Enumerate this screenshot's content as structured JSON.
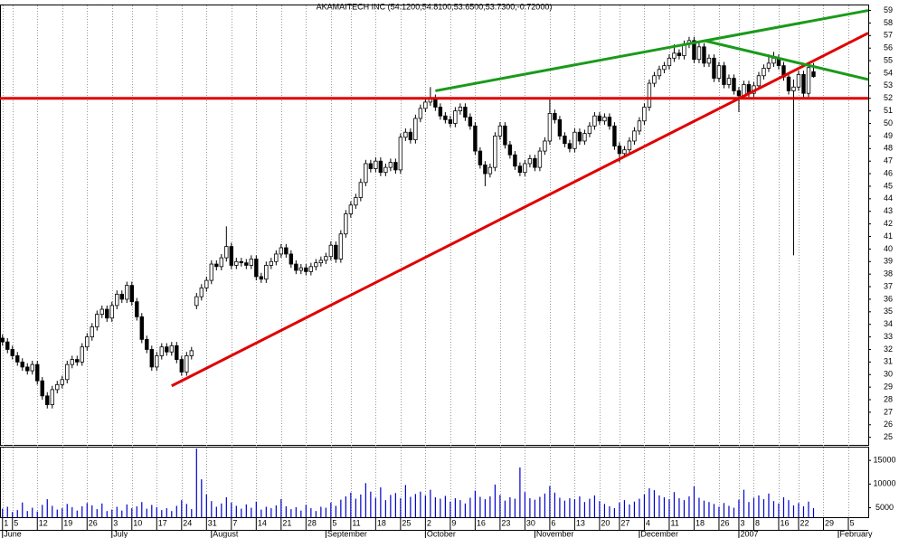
{
  "chart_data": [
    {
      "type": "candlestick",
      "title": "AKAMAITECH INC (54.1200,54.8100,53.6500,53.7300,-0.72000)",
      "xlim": [
        -0.5,
        174
      ],
      "xticks": [
        {
          "value": 0,
          "label": "1"
        },
        {
          "value": 2,
          "label": "5"
        },
        {
          "value": 7,
          "label": "12"
        },
        {
          "value": 12,
          "label": "19"
        },
        {
          "value": 17,
          "label": "26"
        },
        {
          "value": 22,
          "label": "3"
        },
        {
          "value": 26,
          "label": "10"
        },
        {
          "value": 31,
          "label": "17"
        },
        {
          "value": 36,
          "label": "24"
        },
        {
          "value": 41,
          "label": "31"
        },
        {
          "value": 46,
          "label": "7"
        },
        {
          "value": 51,
          "label": "14"
        },
        {
          "value": 56,
          "label": "21"
        },
        {
          "value": 61,
          "label": "28"
        },
        {
          "value": 66,
          "label": "5"
        },
        {
          "value": 70,
          "label": "11"
        },
        {
          "value": 75,
          "label": "18"
        },
        {
          "value": 80,
          "label": "25"
        },
        {
          "value": 85,
          "label": "2"
        },
        {
          "value": 90,
          "label": "9"
        },
        {
          "value": 95,
          "label": "16"
        },
        {
          "value": 100,
          "label": "23"
        },
        {
          "value": 105,
          "label": "30"
        },
        {
          "value": 110,
          "label": "6"
        },
        {
          "value": 115,
          "label": "13"
        },
        {
          "value": 120,
          "label": "20"
        },
        {
          "value": 124,
          "label": "27"
        },
        {
          "value": 129,
          "label": "4"
        },
        {
          "value": 134,
          "label": "11"
        },
        {
          "value": 139,
          "label": "18"
        },
        {
          "value": 144,
          "label": "26"
        },
        {
          "value": 148,
          "label": "3"
        },
        {
          "value": 151,
          "label": "8"
        },
        {
          "value": 156,
          "label": "16"
        },
        {
          "value": 160,
          "label": "22"
        },
        {
          "value": 165,
          "label": "29"
        },
        {
          "value": 170,
          "label": "5"
        }
      ],
      "month_ticks": [
        {
          "value": 0,
          "label": "June"
        },
        {
          "value": 22,
          "label": "July"
        },
        {
          "value": 42,
          "label": "August"
        },
        {
          "value": 65,
          "label": "September"
        },
        {
          "value": 85,
          "label": "October"
        },
        {
          "value": 107,
          "label": "November"
        },
        {
          "value": 128,
          "label": "December"
        },
        {
          "value": 148,
          "label": "2007"
        },
        {
          "value": 168,
          "label": "February"
        }
      ],
      "ylim": [
        24.4,
        59.4
      ],
      "yticks": [
        25,
        26,
        27,
        28,
        29,
        30,
        31,
        32,
        33,
        34,
        35,
        36,
        37,
        38,
        39,
        40,
        41,
        42,
        43,
        44,
        45,
        46,
        47,
        48,
        49,
        50,
        51,
        52,
        53,
        54,
        55,
        56,
        57,
        58,
        59
      ],
      "grid": true,
      "series": [
        {
          "up_color": "#ffffff",
          "down_color": "#000000",
          "open": [
            32.9,
            32.6,
            32.0,
            31.5,
            31.0,
            30.6,
            30.3,
            30.8,
            29.5,
            28.3,
            27.6,
            28.8,
            29.2,
            29.6,
            30.8,
            31.2,
            31.0,
            32.2,
            33.0,
            33.8,
            34.8,
            35.2,
            34.5,
            35.5,
            36.4,
            36.0,
            37.1,
            35.8,
            34.6,
            32.8,
            32.0,
            30.6,
            31.5,
            32.2,
            31.8,
            32.3,
            31.2,
            30.2,
            31.5,
            35.5,
            36.2,
            36.9,
            37.5,
            38.8,
            38.6,
            39.3,
            40.2,
            38.7,
            39.0,
            38.9,
            38.7,
            39.2,
            37.8,
            37.6,
            38.7,
            39.0,
            39.6,
            40.1,
            39.6,
            38.8,
            38.3,
            38.5,
            38.2,
            38.6,
            38.9,
            39.1,
            39.4,
            40.3,
            39.2,
            41.2,
            42.8,
            43.5,
            44.1,
            45.3,
            46.8,
            46.4,
            47.0,
            46.1,
            46.5,
            46.9,
            46.3,
            48.9,
            49.3,
            48.7,
            50.4,
            51.2,
            51.7,
            52.0,
            51.3,
            50.6,
            50.3,
            50.0,
            51.0,
            51.3,
            50.5,
            49.8,
            47.8,
            46.7,
            46.0,
            46.5,
            49.0,
            49.8,
            48.3,
            47.5,
            46.6,
            46.1,
            46.8,
            47.2,
            46.5,
            47.8,
            48.6,
            50.8,
            50.3,
            49.0,
            48.4,
            48.0,
            49.3,
            48.6,
            49.2,
            49.8,
            50.6,
            50.2,
            50.5,
            49.8,
            48.2,
            47.6,
            47.9,
            48.6,
            49.4,
            50.2,
            51.3,
            53.2,
            53.8,
            54.3,
            54.6,
            55.2,
            55.6,
            55.4,
            56.3,
            56.6,
            55.1,
            56.1,
            54.8,
            55.2,
            53.6,
            54.6,
            53.1,
            53.6,
            52.6,
            52.2,
            53.1,
            52.4,
            53.0,
            53.8,
            54.4,
            54.8,
            55.2,
            54.6,
            53.7,
            52.6,
            52.9,
            53.9,
            52.4,
            54.12
          ],
          "high": [
            33.2,
            32.9,
            32.3,
            31.8,
            31.3,
            30.9,
            31.1,
            31.1,
            29.8,
            28.6,
            29.1,
            29.5,
            29.9,
            31.1,
            31.5,
            31.5,
            32.5,
            33.3,
            34.1,
            35.1,
            35.5,
            35.5,
            35.8,
            36.7,
            36.7,
            37.4,
            37.4,
            36.1,
            34.9,
            33.1,
            32.3,
            31.8,
            32.5,
            32.5,
            32.6,
            32.6,
            31.5,
            31.8,
            32.2,
            36.5,
            37.2,
            37.8,
            39.1,
            39.1,
            39.6,
            41.8,
            40.5,
            39.3,
            39.3,
            39.2,
            39.5,
            39.5,
            38.1,
            39.0,
            39.3,
            39.9,
            40.4,
            40.4,
            39.9,
            39.1,
            38.8,
            38.8,
            38.9,
            39.2,
            39.4,
            39.7,
            40.6,
            40.6,
            41.5,
            43.1,
            43.8,
            44.4,
            45.6,
            47.1,
            47.1,
            47.3,
            47.3,
            46.8,
            47.2,
            47.2,
            49.2,
            49.6,
            49.6,
            50.7,
            51.5,
            52.0,
            52.9,
            52.3,
            51.6,
            50.9,
            50.6,
            51.3,
            51.6,
            51.6,
            50.8,
            50.1,
            48.1,
            47.0,
            46.8,
            49.3,
            50.1,
            50.1,
            48.6,
            47.8,
            46.9,
            47.1,
            47.5,
            47.5,
            48.1,
            48.9,
            51.9,
            51.1,
            50.6,
            49.3,
            48.7,
            49.6,
            49.6,
            49.5,
            50.1,
            50.9,
            50.9,
            50.8,
            50.8,
            50.1,
            48.5,
            48.2,
            48.9,
            49.7,
            50.5,
            51.6,
            53.5,
            54.1,
            54.6,
            54.9,
            55.5,
            56.3,
            55.9,
            56.6,
            56.9,
            56.9,
            56.4,
            56.4,
            55.5,
            55.5,
            54.9,
            54.9,
            53.9,
            53.9,
            52.9,
            53.4,
            53.4,
            53.3,
            54.1,
            54.7,
            55.5,
            55.7,
            55.5,
            54.9,
            54.0,
            53.5,
            54.2,
            54.2,
            54.8,
            54.81
          ],
          "low": [
            32.3,
            31.7,
            31.2,
            30.7,
            30.3,
            30.0,
            30.0,
            29.2,
            28.0,
            27.3,
            27.3,
            28.5,
            28.9,
            29.3,
            30.5,
            30.7,
            30.7,
            31.9,
            32.7,
            33.5,
            34.5,
            34.2,
            34.2,
            35.2,
            35.7,
            35.7,
            35.5,
            34.3,
            32.5,
            31.7,
            30.3,
            30.3,
            31.2,
            31.5,
            31.5,
            30.9,
            29.9,
            29.9,
            31.2,
            35.2,
            35.9,
            36.6,
            37.2,
            38.3,
            38.3,
            39.0,
            38.4,
            38.4,
            38.6,
            38.4,
            38.4,
            37.5,
            37.3,
            37.3,
            38.4,
            38.7,
            39.3,
            39.3,
            38.5,
            38.0,
            38.0,
            37.9,
            37.9,
            38.3,
            38.6,
            38.8,
            39.1,
            38.9,
            38.9,
            40.9,
            42.5,
            43.2,
            43.8,
            45.0,
            46.1,
            46.1,
            45.8,
            45.8,
            46.2,
            46.0,
            46.0,
            48.6,
            48.4,
            48.4,
            50.1,
            50.9,
            51.4,
            51.0,
            50.3,
            50.0,
            49.7,
            49.7,
            50.7,
            50.2,
            49.5,
            47.5,
            46.4,
            45.0,
            45.7,
            46.2,
            48.7,
            48.0,
            47.2,
            46.3,
            45.8,
            45.8,
            46.5,
            46.2,
            46.2,
            47.5,
            48.3,
            50.0,
            48.7,
            48.1,
            47.7,
            47.7,
            48.3,
            48.3,
            48.9,
            49.5,
            49.9,
            49.9,
            49.5,
            47.9,
            46.9,
            47.3,
            47.6,
            48.3,
            49.1,
            49.9,
            51.0,
            52.9,
            53.5,
            54.0,
            54.3,
            54.9,
            55.1,
            55.1,
            56.0,
            54.8,
            54.8,
            54.5,
            54.5,
            53.3,
            53.3,
            52.8,
            52.8,
            52.3,
            50.9,
            51.9,
            52.1,
            52.1,
            52.7,
            53.5,
            54.1,
            54.5,
            54.3,
            53.4,
            52.3,
            39.5,
            52.6,
            52.1,
            52.1,
            53.65
          ],
          "close": [
            32.6,
            32.0,
            31.5,
            31.0,
            30.6,
            30.3,
            30.8,
            29.5,
            28.3,
            27.6,
            28.8,
            29.2,
            29.6,
            30.8,
            31.2,
            31.0,
            32.2,
            33.0,
            33.8,
            34.8,
            35.2,
            34.5,
            35.5,
            36.4,
            36.0,
            37.1,
            35.8,
            34.6,
            32.8,
            32.0,
            30.6,
            31.5,
            32.2,
            31.8,
            32.3,
            31.2,
            30.2,
            31.5,
            31.9,
            36.2,
            36.9,
            37.5,
            38.8,
            38.6,
            39.3,
            40.2,
            38.7,
            39.0,
            38.9,
            38.7,
            39.2,
            37.8,
            37.6,
            38.7,
            39.0,
            39.6,
            40.1,
            39.6,
            38.8,
            38.3,
            38.5,
            38.2,
            38.6,
            38.9,
            39.1,
            39.4,
            40.3,
            39.2,
            41.2,
            42.8,
            43.5,
            44.1,
            45.3,
            46.8,
            46.4,
            47.0,
            46.1,
            46.5,
            46.9,
            46.3,
            48.9,
            49.3,
            48.7,
            50.4,
            51.2,
            51.7,
            52.0,
            51.3,
            50.6,
            50.3,
            50.0,
            51.0,
            51.3,
            50.5,
            49.8,
            47.8,
            46.7,
            46.0,
            46.5,
            49.0,
            49.8,
            48.3,
            47.5,
            46.6,
            46.1,
            46.8,
            47.2,
            46.5,
            47.8,
            48.6,
            50.8,
            50.3,
            49.0,
            48.4,
            48.0,
            49.3,
            48.6,
            49.2,
            49.8,
            50.6,
            50.2,
            50.5,
            49.8,
            48.2,
            47.6,
            47.9,
            48.6,
            49.4,
            50.2,
            51.3,
            53.2,
            53.8,
            54.3,
            54.6,
            55.2,
            55.6,
            55.4,
            56.3,
            56.6,
            55.1,
            56.1,
            54.8,
            55.2,
            53.6,
            54.6,
            53.1,
            53.6,
            52.6,
            52.2,
            53.1,
            52.4,
            53.0,
            53.8,
            54.4,
            54.8,
            55.2,
            54.6,
            53.7,
            52.6,
            52.9,
            53.9,
            52.4,
            54.45,
            53.73
          ]
        }
      ],
      "trendlines": [
        {
          "color": "#e00000",
          "points": [
            [
              -0.5,
              52.0
            ],
            [
              174,
              52.0
            ]
          ]
        },
        {
          "color": "#e00000",
          "points": [
            [
              34,
              29.1
            ],
            [
              174,
              57.2
            ]
          ]
        },
        {
          "color": "#1a9a1a",
          "points": [
            [
              87,
              52.6
            ],
            [
              174,
              59.0
            ]
          ]
        },
        {
          "color": "#1a9a1a",
          "points": [
            [
              141,
              56.6
            ],
            [
              174,
              53.5
            ]
          ]
        }
      ]
    },
    {
      "type": "bar",
      "xlim": [
        -0.5,
        174
      ],
      "ylim": [
        3000,
        17700
      ],
      "yticks": [
        5000,
        10000,
        15000
      ],
      "color": "#0000cc",
      "values": [
        4800,
        5200,
        4100,
        4500,
        6100,
        4300,
        5000,
        4200,
        5600,
        6800,
        5400,
        4600,
        4900,
        5800,
        5100,
        4400,
        5300,
        6000,
        5500,
        4700,
        5900,
        4300,
        4600,
        5200,
        4400,
        5700,
        4900,
        5300,
        6200,
        4800,
        5600,
        5100,
        4500,
        4900,
        4300,
        5400,
        6600,
        5800,
        4700,
        17500,
        11000,
        7800,
        6400,
        5200,
        5900,
        7200,
        6100,
        5400,
        4800,
        5700,
        5000,
        6300,
        4600,
        5200,
        4900,
        5500,
        6800,
        5300,
        4700,
        5100,
        4400,
        5600,
        4900,
        4300,
        5200,
        5000,
        6100,
        5400,
        6700,
        7400,
        8200,
        6900,
        7800,
        10200,
        8400,
        7100,
        9300,
        6600,
        7700,
        8100,
        7000,
        9800,
        7300,
        7900,
        8400,
        7600,
        8800,
        7200,
        6900,
        7500,
        6300,
        7000,
        6600,
        5900,
        7100,
        8600,
        7300,
        6800,
        7400,
        9900,
        7700,
        6500,
        7200,
        6900,
        13500,
        8300,
        7000,
        6700,
        7300,
        8000,
        9600,
        8200,
        7100,
        6500,
        7000,
        6800,
        7400,
        6200,
        6900,
        7600,
        6400,
        5800,
        5300,
        4900,
        6100,
        6600,
        5700,
        6300,
        6900,
        7800,
        9100,
        8700,
        7600,
        7200,
        6800,
        8300,
        7000,
        6600,
        7400,
        9500,
        7100,
        6500,
        6200,
        5800,
        5200,
        6000,
        5400,
        5000,
        6700,
        8800,
        6200,
        7100,
        7600,
        6800,
        8000,
        6400,
        5900,
        7200,
        6600,
        5500,
        6000,
        5300,
        6300,
        4900
      ]
    }
  ]
}
